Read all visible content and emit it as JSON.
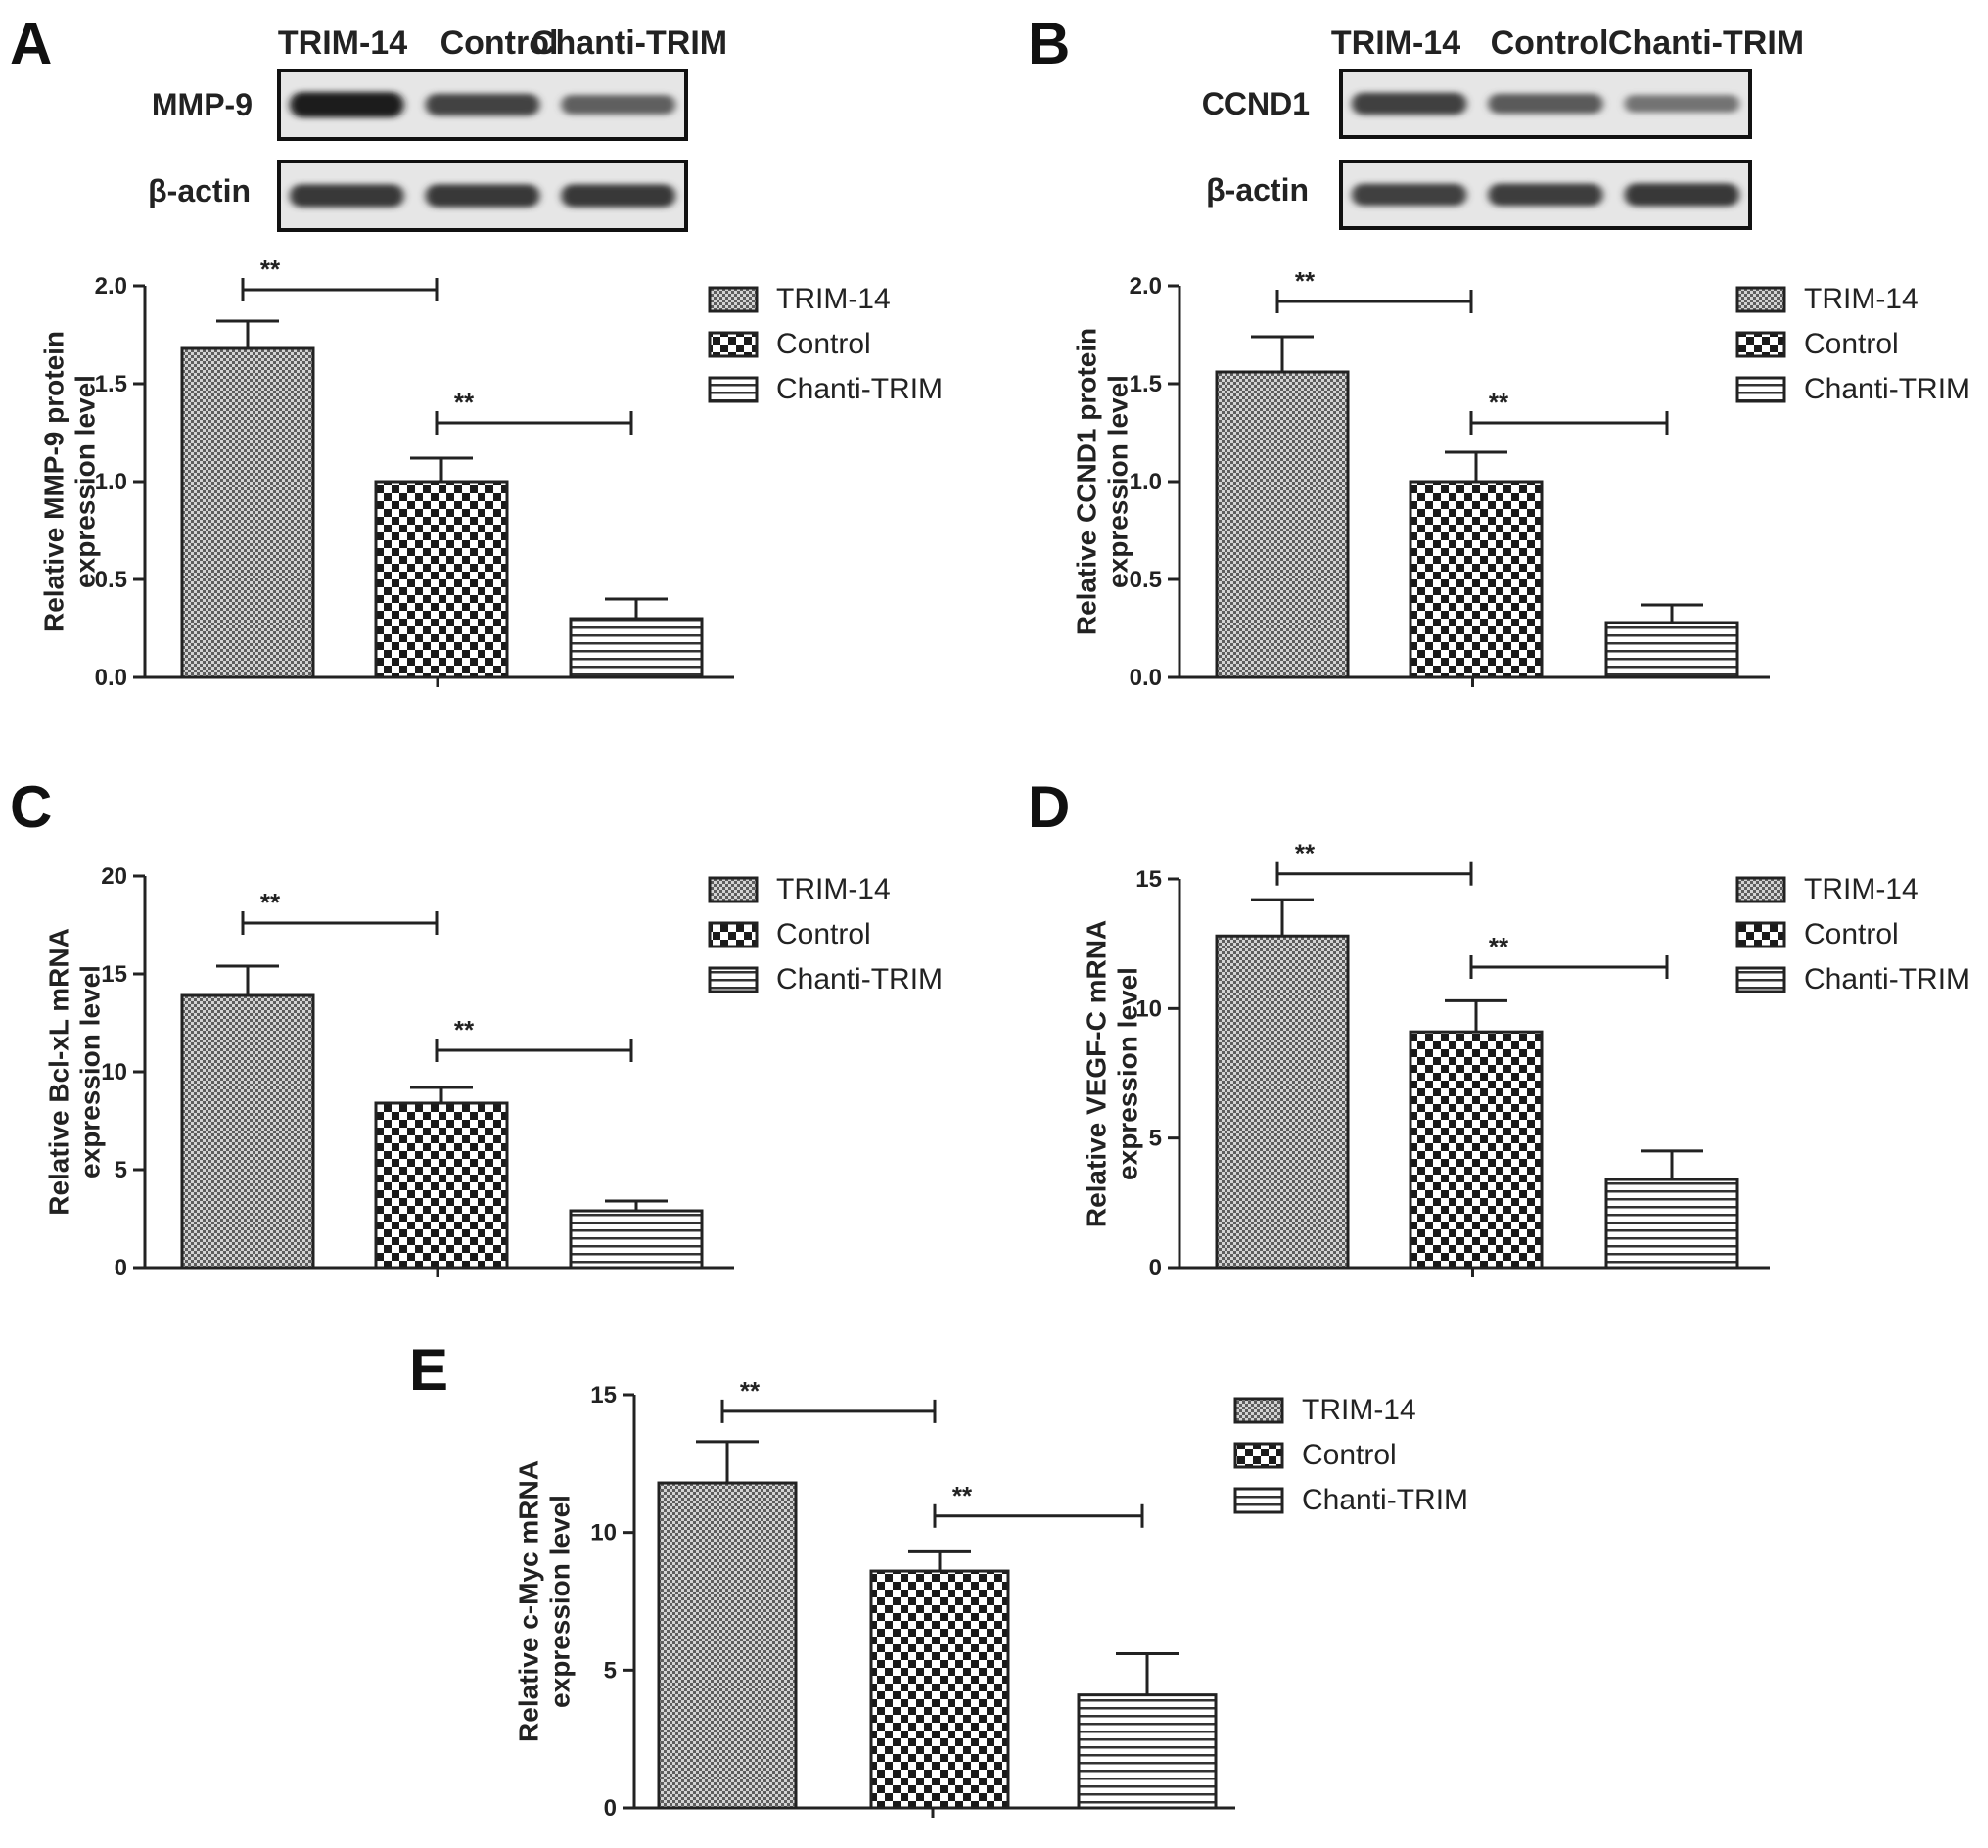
{
  "chart_data": [
    {
      "id": "A",
      "panel_letter": "A",
      "type": "bar",
      "blot": {
        "lanes": [
          "TRIM-14",
          "Control",
          "Chanti-TRIM"
        ],
        "rows": [
          {
            "label": "MMP-9",
            "intensity": [
              1.0,
              0.78,
              0.62
            ]
          },
          {
            "label": "β-actin",
            "intensity": [
              0.85,
              0.85,
              0.85
            ]
          }
        ]
      },
      "categories": [
        "TRIM-14",
        "Control",
        "Chanti-TRIM"
      ],
      "values": [
        1.68,
        1.0,
        0.3
      ],
      "errors": [
        0.14,
        0.12,
        0.1
      ],
      "ylim": [
        0,
        2.0
      ],
      "yticks": [
        "0.0",
        "0.5",
        "1.0",
        "1.5",
        "2.0"
      ],
      "ylabel": [
        "Relative MMP-9 protein",
        "expression level"
      ],
      "significance": [
        {
          "from": 0,
          "to": 1,
          "label": "**",
          "y": 1.98
        },
        {
          "from": 1,
          "to": 2,
          "label": "**",
          "y": 1.3
        }
      ],
      "legend": [
        "TRIM-14",
        "Control",
        "Chanti-TRIM"
      ]
    },
    {
      "id": "B",
      "panel_letter": "B",
      "type": "bar",
      "blot": {
        "lanes": [
          "TRIM-14",
          "Control",
          "Chanti-TRIM"
        ],
        "rows": [
          {
            "label": "CCND1",
            "intensity": [
              0.8,
              0.65,
              0.5
            ]
          },
          {
            "label": "β-actin",
            "intensity": [
              0.8,
              0.82,
              0.85
            ]
          }
        ]
      },
      "categories": [
        "TRIM-14",
        "Control",
        "Chanti-TRIM"
      ],
      "values": [
        1.56,
        1.0,
        0.28
      ],
      "errors": [
        0.18,
        0.15,
        0.09
      ],
      "ylim": [
        0,
        2.0
      ],
      "yticks": [
        "0.0",
        "0.5",
        "1.0",
        "1.5",
        "2.0"
      ],
      "ylabel": [
        "Relative CCND1 protein",
        "expression level"
      ],
      "significance": [
        {
          "from": 0,
          "to": 1,
          "label": "**",
          "y": 1.92
        },
        {
          "from": 1,
          "to": 2,
          "label": "**",
          "y": 1.3
        }
      ],
      "legend": [
        "TRIM-14",
        "Control",
        "Chanti-TRIM"
      ]
    },
    {
      "id": "C",
      "panel_letter": "C",
      "type": "bar",
      "categories": [
        "TRIM-14",
        "Control",
        "Chanti-TRIM"
      ],
      "values": [
        13.9,
        8.4,
        2.9
      ],
      "errors": [
        1.5,
        0.8,
        0.5
      ],
      "ylim": [
        0,
        20
      ],
      "yticks": [
        "0",
        "5",
        "10",
        "15",
        "20"
      ],
      "ylabel": [
        "Relative Bcl-xL mRNA",
        "expression level"
      ],
      "significance": [
        {
          "from": 0,
          "to": 1,
          "label": "**",
          "y": 17.6
        },
        {
          "from": 1,
          "to": 2,
          "label": "**",
          "y": 11.1
        }
      ],
      "legend": [
        "TRIM-14",
        "Control",
        "Chanti-TRIM"
      ]
    },
    {
      "id": "D",
      "panel_letter": "D",
      "type": "bar",
      "categories": [
        "TRIM-14",
        "Control",
        "Chanti-TRIM"
      ],
      "values": [
        12.8,
        9.1,
        3.4
      ],
      "errors": [
        1.4,
        1.2,
        1.1
      ],
      "ylim": [
        0,
        15
      ],
      "yticks": [
        "0",
        "5",
        "10",
        "15"
      ],
      "ylabel": [
        "Relative VEGF-C mRNA",
        "expression level"
      ],
      "significance": [
        {
          "from": 0,
          "to": 1,
          "label": "**",
          "y": 15.2
        },
        {
          "from": 1,
          "to": 2,
          "label": "**",
          "y": 11.6
        }
      ],
      "legend": [
        "TRIM-14",
        "Control",
        "Chanti-TRIM"
      ]
    },
    {
      "id": "E",
      "panel_letter": "E",
      "type": "bar",
      "categories": [
        "TRIM-14",
        "Control",
        "Chanti-TRIM"
      ],
      "values": [
        11.8,
        8.6,
        4.1
      ],
      "errors": [
        1.5,
        0.7,
        1.5
      ],
      "ylim": [
        0,
        15
      ],
      "yticks": [
        "0",
        "5",
        "10",
        "15"
      ],
      "ylabel": [
        "Relative c-Myc mRNA",
        "expression level"
      ],
      "significance": [
        {
          "from": 0,
          "to": 1,
          "label": "**",
          "y": 14.4
        },
        {
          "from": 1,
          "to": 2,
          "label": "**",
          "y": 10.6
        }
      ],
      "legend": [
        "TRIM-14",
        "Control",
        "Chanti-TRIM"
      ]
    }
  ]
}
